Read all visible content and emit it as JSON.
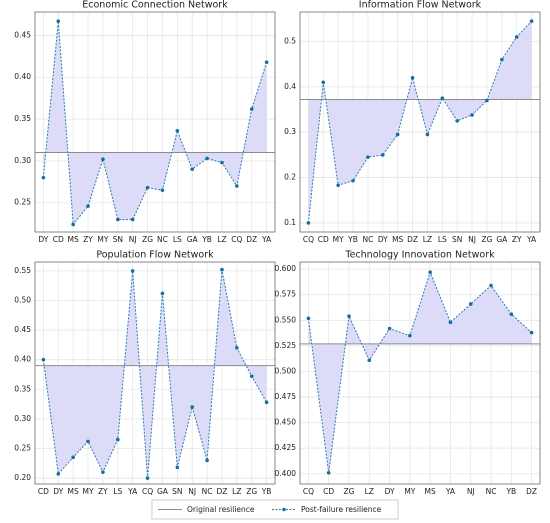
{
  "chart_data": [
    {
      "type": "line",
      "title": "Economic Connection Network",
      "categories": [
        "DY",
        "CD",
        "MS",
        "ZY",
        "MY",
        "SN",
        "NJ",
        "ZG",
        "NC",
        "LS",
        "GA",
        "YB",
        "LZ",
        "CQ",
        "DZ",
        "YA"
      ],
      "series": [
        {
          "name": "Original resilience",
          "color": "#8c8c8c",
          "value": 0.31
        },
        {
          "name": "Post-failure resilience",
          "color": "#2b7bb0",
          "values": [
            0.28,
            0.467,
            0.224,
            0.246,
            0.302,
            0.23,
            0.23,
            0.268,
            0.265,
            0.336,
            0.29,
            0.303,
            0.298,
            0.27,
            0.362,
            0.418
          ]
        }
      ],
      "fill_color": "#dcdcf8",
      "ylim": [
        0.215,
        0.478
      ],
      "yticks": [
        {
          "value": 0.25,
          "label": "0.25"
        },
        {
          "value": 0.3,
          "label": "0.30"
        },
        {
          "value": 0.35,
          "label": "0.35"
        },
        {
          "value": 0.4,
          "label": "0.40"
        },
        {
          "value": 0.45,
          "label": "0.45"
        }
      ],
      "grid": true
    },
    {
      "type": "line",
      "title": "Information Flow Network",
      "categories": [
        "CQ",
        "CD",
        "MY",
        "YB",
        "NC",
        "DY",
        "MS",
        "DZ",
        "LZ",
        "LS",
        "SN",
        "NJ",
        "ZG",
        "GA",
        "ZY",
        "YA"
      ],
      "series": [
        {
          "name": "Original resilience",
          "color": "#8c8c8c",
          "value": 0.372
        },
        {
          "name": "Post-failure resilience",
          "color": "#2b7bb0",
          "values": [
            0.1,
            0.41,
            0.183,
            0.193,
            0.245,
            0.25,
            0.295,
            0.42,
            0.295,
            0.375,
            0.325,
            0.338,
            0.37,
            0.46,
            0.51,
            0.545
          ]
        }
      ],
      "fill_color": "#dcdcf8",
      "ylim": [
        0.08,
        0.565
      ],
      "yticks": [
        0.1,
        0.2,
        0.3,
        0.4,
        0.5
      ],
      "grid": true
    },
    {
      "type": "line",
      "title": "Population Flow Network",
      "categories": [
        "CD",
        "DY",
        "MS",
        "MY",
        "ZY",
        "LS",
        "YA",
        "CQ",
        "GA",
        "SN",
        "NJ",
        "NC",
        "DZ",
        "LZ",
        "ZG",
        "YB"
      ],
      "series": [
        {
          "name": "Original resilience",
          "color": "#8c8c8c",
          "value": 0.39
        },
        {
          "name": "Post-failure resilience",
          "color": "#2b7bb0",
          "values": [
            0.4,
            0.207,
            0.235,
            0.262,
            0.21,
            0.265,
            0.55,
            0.2,
            0.512,
            0.218,
            0.32,
            0.23,
            0.552,
            0.42,
            0.372,
            0.328
          ]
        }
      ],
      "fill_color": "#dcdcf8",
      "ylim": [
        0.19,
        0.565
      ],
      "yticks": [
        {
          "value": 0.2,
          "label": "0.20"
        },
        {
          "value": 0.25,
          "label": "0.25"
        },
        {
          "value": 0.3,
          "label": "0.30"
        },
        {
          "value": 0.35,
          "label": "0.35"
        },
        {
          "value": 0.4,
          "label": "0.40"
        },
        {
          "value": 0.45,
          "label": "0.45"
        },
        {
          "value": 0.5,
          "label": "0.50"
        },
        {
          "value": 0.55,
          "label": "0.55"
        }
      ],
      "grid": true
    },
    {
      "type": "line",
      "title": "Technology Innovation Network",
      "categories": [
        "CQ",
        "CD",
        "ZG",
        "LZ",
        "DY",
        "MY",
        "MS",
        "YA",
        "NJ",
        "NC",
        "YB",
        "DZ"
      ],
      "series": [
        {
          "name": "Original resilience",
          "color": "#8c8c8c",
          "value": 0.527
        },
        {
          "name": "Post-failure resilience",
          "color": "#2b7bb0",
          "values": [
            0.552,
            0.401,
            0.554,
            0.511,
            0.542,
            0.535,
            0.597,
            0.548,
            0.566,
            0.584,
            0.556,
            0.538
          ]
        }
      ],
      "fill_color": "#dcdcf8",
      "ylim": [
        0.39,
        0.607
      ],
      "yticks": [
        {
          "value": 0.4,
          "label": "0.400"
        },
        {
          "value": 0.425,
          "label": "0.425"
        },
        {
          "value": 0.45,
          "label": "0.450"
        },
        {
          "value": 0.475,
          "label": "0.475"
        },
        {
          "value": 0.5,
          "label": "0.500"
        },
        {
          "value": 0.525,
          "label": "0.525"
        },
        {
          "value": 0.55,
          "label": "0.550"
        },
        {
          "value": 0.575,
          "label": "0.575"
        },
        {
          "value": 0.6,
          "label": "0.600"
        }
      ],
      "grid": true
    }
  ]
}
